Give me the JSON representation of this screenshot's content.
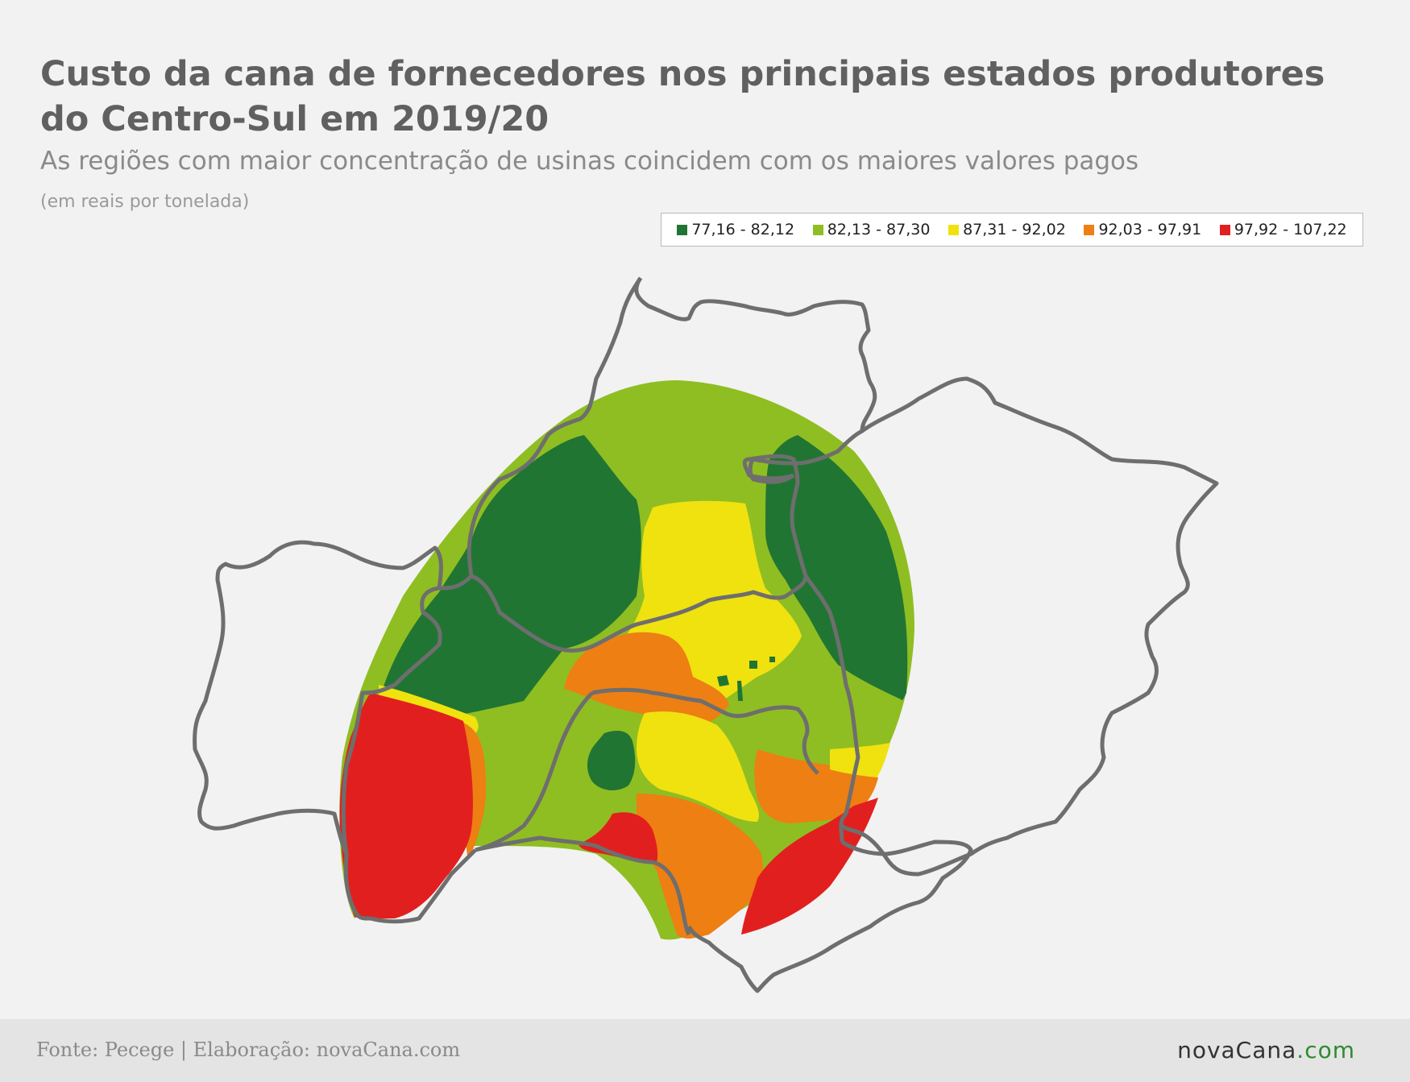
{
  "title_lines": [
    "Custo da cana de fornecedores nos principais estados produtores",
    "do Centro-Sul em 2019/20"
  ],
  "subtitle": "As regiões com maior concentração de usinas coincidem com os maiores valores pagos",
  "unit_note": "(em reais por tonelada)",
  "legend": [
    {
      "label": "77,16 - 82,12",
      "color": "#217533"
    },
    {
      "label": "82,13 - 87,30",
      "color": "#8fbe22"
    },
    {
      "label": "87,31 - 92,02",
      "color": "#efe20f"
    },
    {
      "label": "92,03 - 97,91",
      "color": "#ee7f12"
    },
    {
      "label": "97,92 - 107,22",
      "color": "#e21f1f"
    }
  ],
  "colors": {
    "background": "#f2f2f2",
    "border": "#6e6e6e",
    "footer": "#e4e4e4"
  },
  "footer": {
    "source": "Fonte: Pecege | Elaboração: novaCana.com",
    "brand_main": "novaCana",
    "brand_tld": ".com"
  }
}
